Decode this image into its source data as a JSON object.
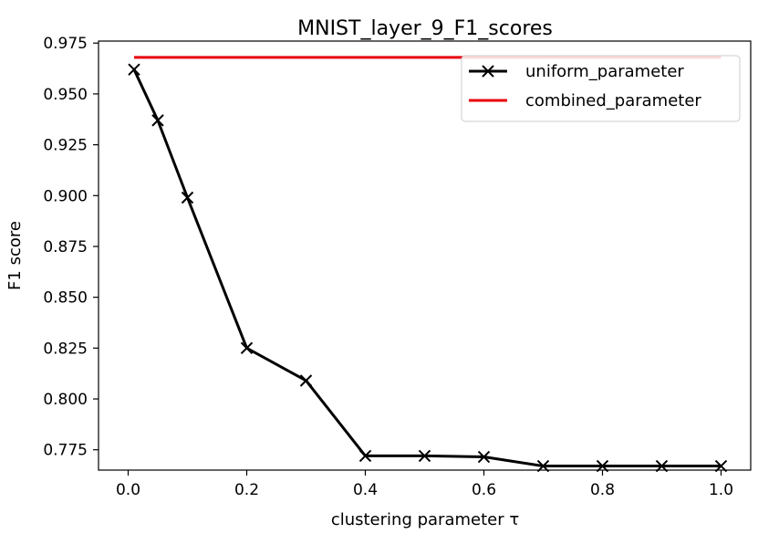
{
  "chart_data": {
    "type": "line",
    "title": "MNIST_layer_9_F1_scores",
    "xlabel": "clustering parameter τ",
    "ylabel": "F1 score",
    "xlim": [
      -0.05,
      1.05
    ],
    "ylim": [
      0.765,
      0.976
    ],
    "xticks": [
      "0.0",
      "0.2",
      "0.4",
      "0.6",
      "0.8",
      "1.0"
    ],
    "yticks": [
      "0.775",
      "0.800",
      "0.825",
      "0.850",
      "0.875",
      "0.900",
      "0.925",
      "0.950",
      "0.975"
    ],
    "grid": false,
    "legend_position": "top-right",
    "series": [
      {
        "name": "uniform_parameter",
        "marker": "x",
        "color": "#000000",
        "x": [
          0.01,
          0.05,
          0.1,
          0.2,
          0.3,
          0.4,
          0.5,
          0.6,
          0.7,
          0.8,
          0.9,
          1.0
        ],
        "y": [
          0.962,
          0.937,
          0.899,
          0.825,
          0.809,
          0.772,
          0.772,
          0.7715,
          0.767,
          0.767,
          0.767,
          0.767
        ]
      },
      {
        "name": "combined_parameter",
        "marker": "none",
        "color": "#e8000b",
        "x": [
          0.01,
          1.0
        ],
        "y": [
          0.968,
          0.968
        ]
      }
    ]
  }
}
